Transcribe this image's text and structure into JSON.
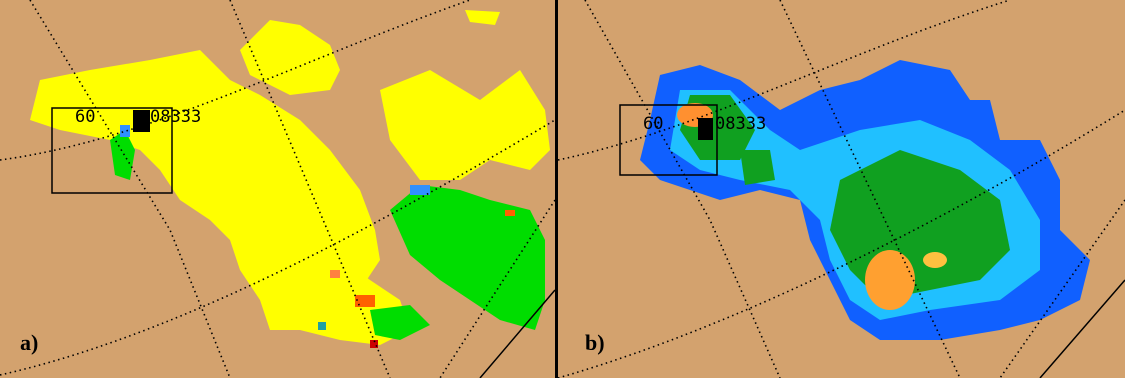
{
  "panels": [
    {
      "label": "a)",
      "range_label": "60",
      "station": "08333"
    },
    {
      "label": "b)",
      "range_label": "60",
      "station": "08333"
    }
  ]
}
